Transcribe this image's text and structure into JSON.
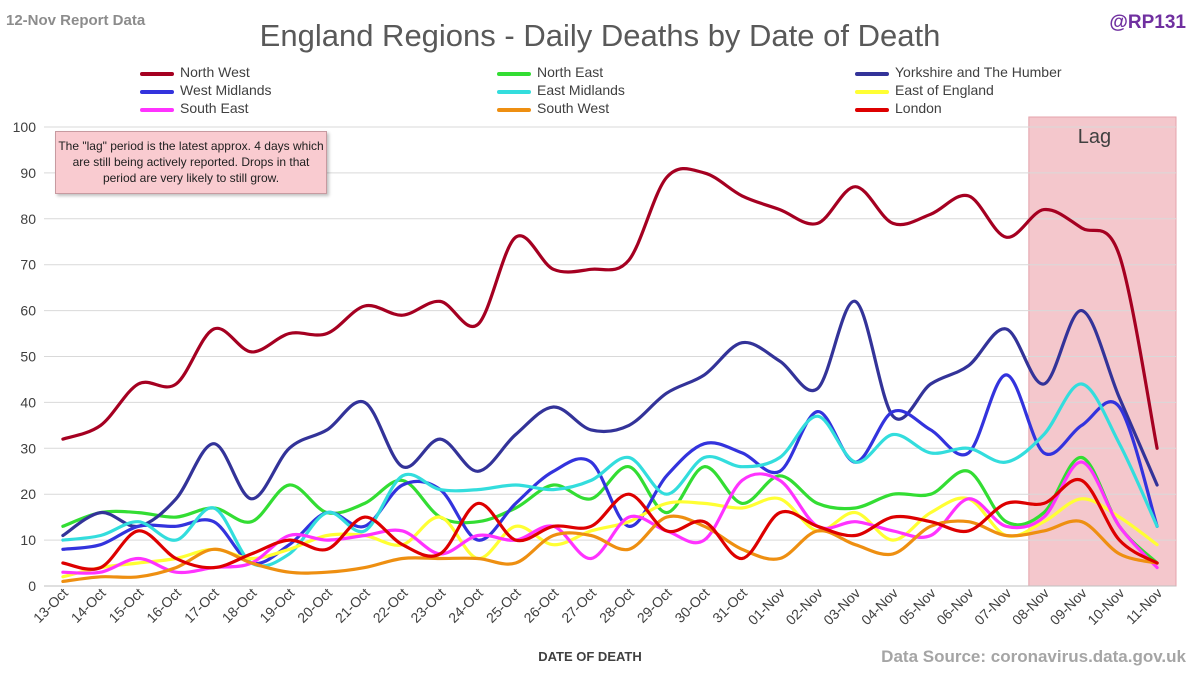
{
  "header": {
    "report_date": "12-Nov Report Data",
    "title": "England Regions - Daily Deaths by Date of Death",
    "handle": "@RP131"
  },
  "note": "The \"lag\" period is the latest approx. 4 days which are still being actively reported.  Drops in that period are very likely to still grow.",
  "source": "Data Source: coronavirus.data.gov.uk",
  "chart_data": {
    "type": "line",
    "title": "England Regions - Daily Deaths by Date of Death",
    "xlabel": "DATE OF DEATH",
    "ylabel": "",
    "ylim": [
      0,
      100
    ],
    "yticks": [
      0,
      10,
      20,
      30,
      40,
      50,
      60,
      70,
      80,
      90,
      100
    ],
    "grid": "horizontal",
    "legend_position": "top",
    "smoothed": true,
    "categories": [
      "13-Oct",
      "14-Oct",
      "15-Oct",
      "16-Oct",
      "17-Oct",
      "18-Oct",
      "19-Oct",
      "20-Oct",
      "21-Oct",
      "22-Oct",
      "23-Oct",
      "24-Oct",
      "25-Oct",
      "26-Oct",
      "27-Oct",
      "28-Oct",
      "29-Oct",
      "30-Oct",
      "31-Oct",
      "01-Nov",
      "02-Nov",
      "03-Nov",
      "04-Nov",
      "05-Nov",
      "06-Nov",
      "07-Nov",
      "08-Nov",
      "09-Nov",
      "10-Nov",
      "11-Nov"
    ],
    "lag_region": {
      "from": "08-Nov",
      "to": "11-Nov",
      "label": "Lag",
      "color": "#f4c7cc"
    },
    "series": [
      {
        "name": "North West",
        "color": "#a50021",
        "values": [
          32,
          35,
          44,
          44,
          56,
          51,
          55,
          55,
          61,
          59,
          62,
          57,
          76,
          69,
          69,
          71,
          89,
          90,
          85,
          82,
          79,
          87,
          79,
          81,
          85,
          76,
          82,
          78,
          72,
          30
        ]
      },
      {
        "name": "North East",
        "color": "#33dd33",
        "values": [
          13,
          16,
          16,
          15,
          17,
          14,
          22,
          16,
          18,
          23,
          15,
          14,
          17,
          22,
          19,
          26,
          16,
          26,
          18,
          24,
          18,
          17,
          20,
          20,
          25,
          14,
          16,
          28,
          13,
          5
        ]
      },
      {
        "name": "Yorkshire and The Humber",
        "color": "#333399",
        "values": [
          11,
          16,
          13,
          19,
          31,
          19,
          30,
          34,
          40,
          26,
          32,
          25,
          33,
          39,
          34,
          35,
          42,
          46,
          53,
          49,
          43,
          62,
          37,
          44,
          48,
          56,
          44,
          60,
          41,
          22
        ]
      },
      {
        "name": "West Midlands",
        "color": "#3333dd",
        "values": [
          8,
          9,
          13,
          13,
          14,
          5,
          9,
          16,
          13,
          22,
          21,
          10,
          18,
          25,
          27,
          13,
          24,
          31,
          29,
          25,
          38,
          27,
          38,
          34,
          29,
          46,
          29,
          35,
          39,
          13
        ]
      },
      {
        "name": "East Midlands",
        "color": "#33dddd",
        "values": [
          10,
          11,
          14,
          10,
          17,
          5,
          7,
          16,
          12,
          24,
          21,
          21,
          22,
          21,
          23,
          28,
          20,
          28,
          26,
          28,
          37,
          27,
          33,
          29,
          30,
          27,
          33,
          44,
          31,
          13
        ]
      },
      {
        "name": "East of England",
        "color": "#ffff33",
        "values": [
          2,
          4,
          5,
          6,
          8,
          6,
          8,
          11,
          11,
          9,
          15,
          6,
          13,
          9,
          12,
          14,
          18,
          18,
          17,
          19,
          12,
          16,
          10,
          16,
          19,
          11,
          14,
          19,
          15,
          9
        ]
      },
      {
        "name": "South East",
        "color": "#ff33ff",
        "values": [
          3,
          3,
          6,
          3,
          4,
          5,
          11,
          10,
          11,
          12,
          7,
          11,
          10,
          13,
          6,
          15,
          12,
          10,
          23,
          23,
          13,
          14,
          12,
          11,
          19,
          13,
          15,
          27,
          13,
          4
        ]
      },
      {
        "name": "South West",
        "color": "#ee8f11",
        "values": [
          1,
          2,
          2,
          4,
          8,
          5,
          3,
          3,
          4,
          6,
          6,
          6,
          5,
          11,
          11,
          8,
          15,
          13,
          8,
          6,
          12,
          9,
          7,
          13,
          14,
          11,
          12,
          14,
          7,
          5
        ]
      },
      {
        "name": "London",
        "color": "#dd0000",
        "values": [
          5,
          4,
          12,
          6,
          4,
          7,
          10,
          8,
          15,
          9,
          7,
          18,
          10,
          13,
          13,
          20,
          12,
          14,
          6,
          16,
          13,
          11,
          15,
          14,
          12,
          18,
          18,
          23,
          10,
          5
        ]
      }
    ]
  }
}
